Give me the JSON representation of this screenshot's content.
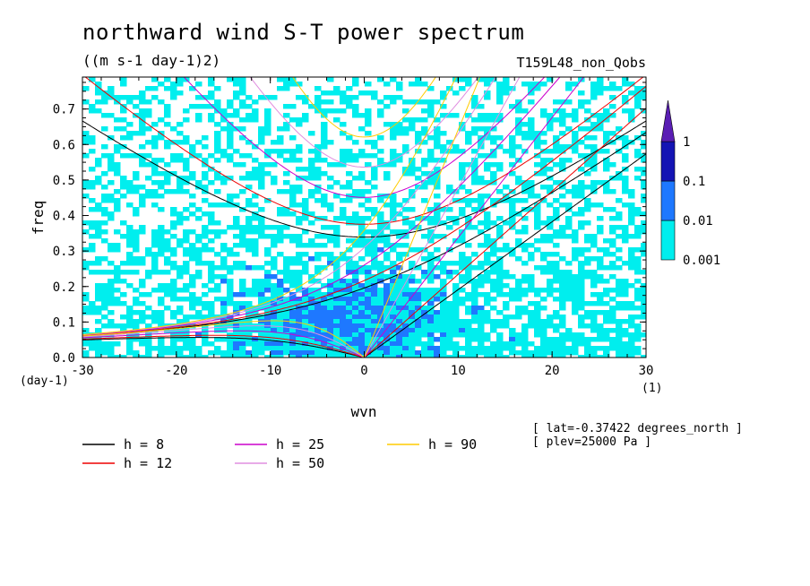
{
  "chart_data": {
    "type": "heatmap",
    "title": "northward wind S-T power spectrum",
    "subtitle": "((m s-1 day-1)2)",
    "run_label": "T159L48_non_Qobs",
    "xlabel": "wvn",
    "ylabel": "freq",
    "x_unit": "(1)",
    "y_unit": "(day-1)",
    "xlim": [
      -30,
      30
    ],
    "ylim": [
      0,
      0.79
    ],
    "x_ticks": [
      -30,
      -20,
      -10,
      0,
      10,
      20,
      30
    ],
    "x_tick_labels": [
      "-30",
      "-20",
      "-10",
      "0",
      "10",
      "20",
      "30"
    ],
    "y_ticks": [
      0,
      0.1,
      0.2,
      0.3,
      0.4,
      0.5,
      0.6,
      0.7
    ],
    "y_tick_labels": [
      "0.0",
      "0.1",
      "0.2",
      "0.3",
      "0.4",
      "0.5",
      "0.6",
      "0.7"
    ],
    "colorbar": {
      "levels": [
        0.001,
        0.01,
        0.1,
        1
      ],
      "labels": [
        "0.001",
        "0.01",
        "0.1",
        "1"
      ],
      "colors": [
        "#00eeee",
        "#1e78ff",
        "#1414b4",
        "#5a1eb4"
      ]
    },
    "annotations": [
      "[ lat=-0.37422 degrees_north ]",
      "[ plev=25000 Pa ]"
    ],
    "dispersion_curves": [
      {
        "name": "h =  8",
        "h": 8,
        "color": "#000000"
      },
      {
        "name": "h = 12",
        "h": 12,
        "color": "#ee0000"
      },
      {
        "name": "h = 25",
        "h": 25,
        "color": "#cc00cc"
      },
      {
        "name": "h = 50",
        "h": 50,
        "color": "#e08ee0"
      },
      {
        "name": "h = 90",
        "h": 90,
        "color": "#ffcc00"
      }
    ]
  }
}
